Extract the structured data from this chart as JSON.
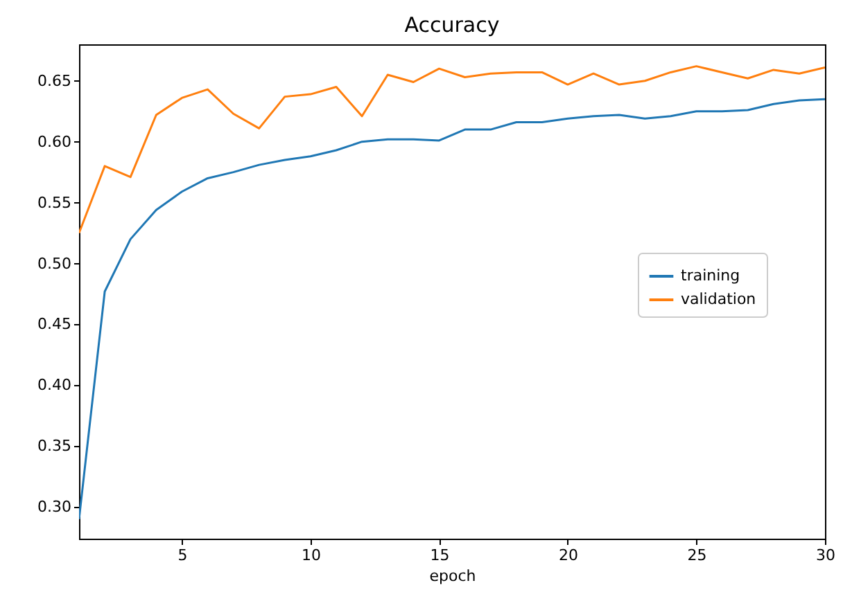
{
  "chart_data": {
    "type": "line",
    "title": "Accuracy",
    "xlabel": "epoch",
    "x": [
      1,
      2,
      3,
      4,
      5,
      6,
      7,
      8,
      9,
      10,
      11,
      12,
      13,
      14,
      15,
      16,
      17,
      18,
      19,
      20,
      21,
      22,
      23,
      24,
      25,
      26,
      27,
      28,
      29,
      30
    ],
    "series": [
      {
        "name": "training",
        "color": "#1f77b4",
        "values": [
          0.29,
          0.477,
          0.52,
          0.544,
          0.559,
          0.57,
          0.575,
          0.581,
          0.585,
          0.588,
          0.593,
          0.6,
          0.602,
          0.602,
          0.601,
          0.61,
          0.61,
          0.616,
          0.616,
          0.619,
          0.621,
          0.622,
          0.619,
          0.621,
          0.625,
          0.625,
          0.626,
          0.631,
          0.634,
          0.635
        ]
      },
      {
        "name": "validation",
        "color": "#ff7f0e",
        "values": [
          0.525,
          0.58,
          0.571,
          0.622,
          0.636,
          0.643,
          0.623,
          0.611,
          0.637,
          0.639,
          0.645,
          0.621,
          0.655,
          0.649,
          0.66,
          0.653,
          0.656,
          0.657,
          0.657,
          0.647,
          0.656,
          0.647,
          0.65,
          0.657,
          0.662,
          0.657,
          0.652,
          0.659,
          0.656,
          0.661
        ]
      }
    ],
    "xlim": [
      1,
      30
    ],
    "xticks": [
      5,
      10,
      15,
      20,
      25,
      30
    ],
    "ylim": [
      0.274,
      0.68
    ],
    "yticks": [
      {
        "value": 0.3,
        "label": "0.30"
      },
      {
        "value": 0.35,
        "label": "0.35"
      },
      {
        "value": 0.4,
        "label": "0.40"
      },
      {
        "value": 0.45,
        "label": "0.45"
      },
      {
        "value": 0.5,
        "label": "0.50"
      },
      {
        "value": 0.55,
        "label": "0.55"
      },
      {
        "value": 0.6,
        "label": "0.60"
      },
      {
        "value": 0.65,
        "label": "0.65"
      }
    ],
    "legend": "right",
    "marker": "none",
    "line_style": "solid",
    "grid": false
  }
}
